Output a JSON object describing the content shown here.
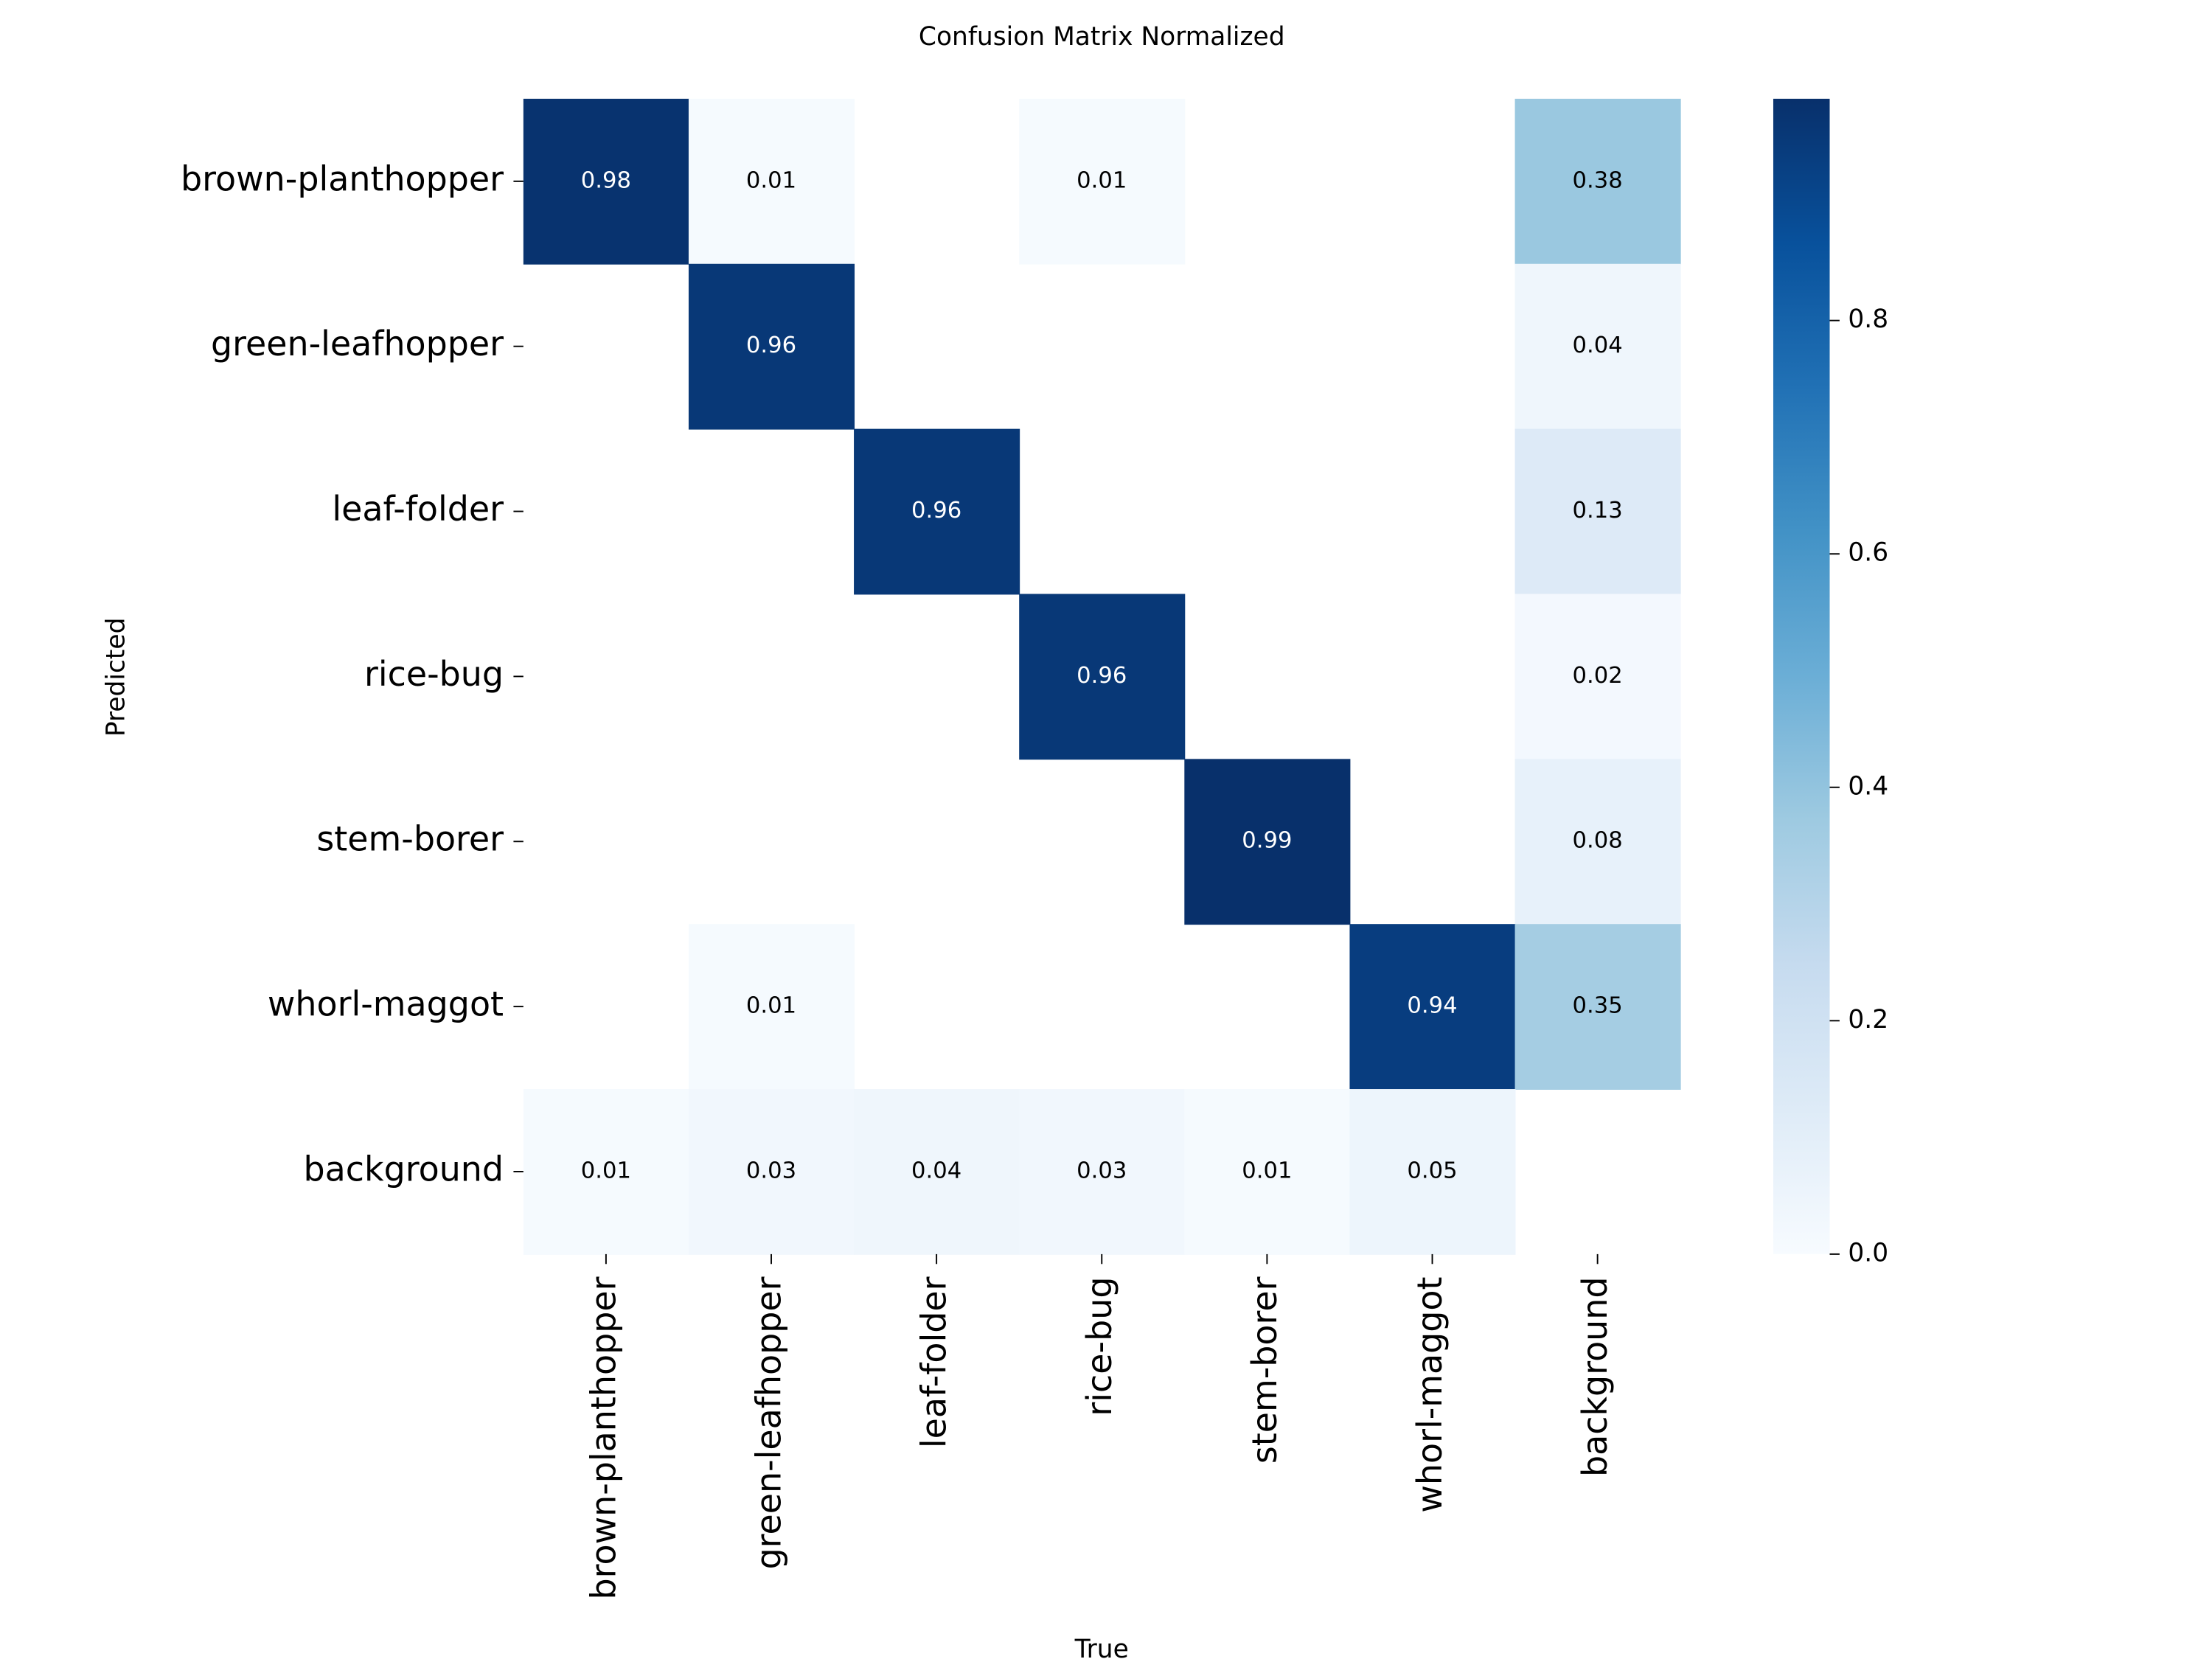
{
  "chart_data": {
    "type": "heatmap",
    "title": "Confusion Matrix Normalized",
    "xlabel": "True",
    "ylabel": "Predicted",
    "x_categories": [
      "brown-planthopper",
      "green-leafhopper",
      "leaf-folder",
      "rice-bug",
      "stem-borer",
      "whorl-maggot",
      "background"
    ],
    "y_categories": [
      "brown-planthopper",
      "green-leafhopper",
      "leaf-folder",
      "rice-bug",
      "stem-borer",
      "whorl-maggot",
      "background"
    ],
    "values": [
      [
        0.98,
        0.01,
        null,
        0.01,
        null,
        null,
        0.38
      ],
      [
        null,
        0.96,
        null,
        null,
        null,
        null,
        0.04
      ],
      [
        null,
        null,
        0.96,
        null,
        null,
        null,
        0.13
      ],
      [
        null,
        null,
        null,
        0.96,
        null,
        null,
        0.02
      ],
      [
        null,
        null,
        null,
        null,
        0.99,
        null,
        0.08
      ],
      [
        null,
        0.01,
        null,
        null,
        null,
        0.94,
        0.35
      ],
      [
        0.01,
        0.03,
        0.04,
        0.03,
        0.01,
        0.05,
        null
      ]
    ],
    "colormap": "Blues",
    "clim": [
      0,
      0.99
    ],
    "colorbar_ticks": [
      {
        "value": 0,
        "label": "0.0"
      },
      0.2,
      0.4,
      0.6,
      0.8
    ]
  }
}
